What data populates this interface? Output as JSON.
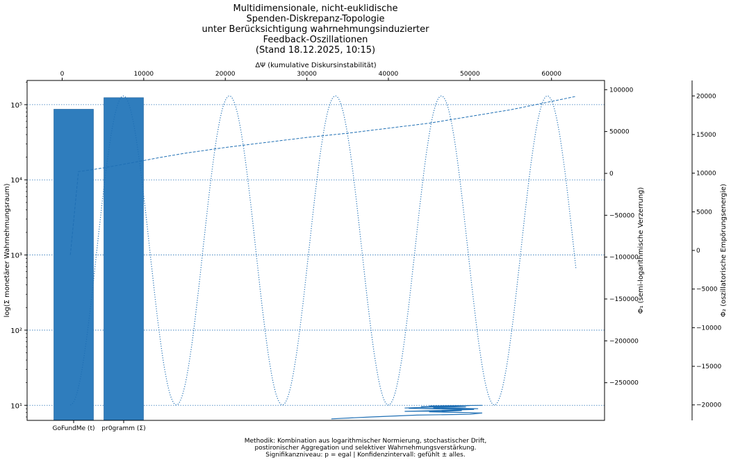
{
  "chart_data": {
    "type": "bar",
    "title": [
      "Multidimensionale, nicht-euklidische",
      "Spenden-Diskrepanz-Topologie",
      "unter Berücksichtigung wahrnehmungsinduzierter",
      "Feedback-Oszillationen",
      "(Stand 18.12.2025, 10:15)"
    ],
    "footer": [
      "Methodik: Kombination aus logarithmischer Normierung, stochastischer Drift,",
      "postironischer Aggregation und selektiver Wahrnehmungsverstärkung.",
      "Signifikanzniveau: p = egal | Konfidenzintervall: gefühlt ± alles."
    ],
    "categories": [
      "GoFundMe (t)",
      "pr0gramm (Σ)"
    ],
    "values": [
      87000,
      124000
    ],
    "bar_color": "#2f7dbd",
    "line_color": "#1f6fb4",
    "ylabel": "log(Σ monetärer Wahrnehmungsraum)",
    "yscale": "log",
    "ylim": [
      6.3,
      210000
    ],
    "yticks": [
      {
        "value": 10,
        "label": "10¹"
      },
      {
        "value": 100,
        "label": "10²"
      },
      {
        "value": 1000,
        "label": "10³"
      },
      {
        "value": 10000,
        "label": "10⁴"
      },
      {
        "value": 100000,
        "label": "10⁵"
      }
    ],
    "grid": "horizontal dotted at major ticks",
    "top_axis": {
      "label": "ΔΨ (kumulative Diskursinstabilität)",
      "range": [
        -4300,
        66500
      ],
      "ticks": [
        {
          "value": 0,
          "label": "0"
        },
        {
          "value": 10000,
          "label": "10000"
        },
        {
          "value": 20000,
          "label": "20000"
        },
        {
          "value": 30000,
          "label": "30000"
        },
        {
          "value": 40000,
          "label": "40000"
        },
        {
          "value": 50000,
          "label": "50000"
        },
        {
          "value": 60000,
          "label": "60000"
        }
      ]
    },
    "right_axis_1": {
      "label": "Φ₁ (semi-logarithmische Verzerrung)",
      "range": [
        -295000,
        111000
      ],
      "ticks": [
        {
          "value": 100000,
          "label": "100000"
        },
        {
          "value": 50000,
          "label": "50000"
        },
        {
          "value": 0,
          "label": "0"
        },
        {
          "value": -50000,
          "label": "−50000"
        },
        {
          "value": -100000,
          "label": "−100000"
        },
        {
          "value": -150000,
          "label": "−150000"
        },
        {
          "value": -200000,
          "label": "−200000"
        },
        {
          "value": -250000,
          "label": "−250000"
        }
      ]
    },
    "right_axis_2": {
      "label": "Φ₂ (oszillatorische Empörungsenergie)",
      "range": [
        -22000,
        22000
      ],
      "ticks": [
        {
          "value": 20000,
          "label": "20000"
        },
        {
          "value": 15000,
          "label": "15000"
        },
        {
          "value": 10000,
          "label": "10000"
        },
        {
          "value": 5000,
          "label": "5000"
        },
        {
          "value": 0,
          "label": "0"
        },
        {
          "value": -5000,
          "label": "−5000"
        },
        {
          "value": -10000,
          "label": "−10000"
        },
        {
          "value": -15000,
          "label": "−15000"
        },
        {
          "value": -20000,
          "label": "−20000"
        }
      ]
    },
    "series": [
      {
        "style": "dashed",
        "desc": "log-like rise over top axis",
        "x": [
          1000,
          2000,
          3500,
          5000,
          7000,
          9500,
          12000,
          15000,
          20000,
          25000,
          30000,
          35000,
          40000,
          45000,
          50000,
          55000,
          60000,
          63000
        ],
        "y": [
          1000,
          2200,
          4200,
          6500,
          10000,
          14500,
          19000,
          24000,
          31000,
          37000,
          43000,
          48000,
          54000,
          60000,
          68000,
          76000,
          86000,
          92000
        ]
      },
      {
        "style": "dotted",
        "desc": "cosine oscillation, period ~13000, amplitude 20000",
        "amplitude": 20000,
        "period": 13000,
        "x_start": 1000,
        "x_end": 63000
      },
      {
        "style": "solid",
        "desc": "stochastic drift cluster",
        "x": [
          33000,
          38000,
          43500,
          50000,
          51500,
          45000,
          49000,
          42000,
          50500,
          42500,
          51000,
          45500,
          49500,
          44000,
          48000,
          42000,
          50000,
          45000,
          51500
        ],
        "y": [
          6.6,
          7.0,
          7.4,
          7.6,
          7.9,
          8.2,
          8.5,
          8.3,
          8.8,
          9.1,
          9.0,
          9.3,
          9.5,
          9.6,
          9.7,
          9.2,
          9.9,
          9.8,
          10.0
        ]
      }
    ]
  }
}
